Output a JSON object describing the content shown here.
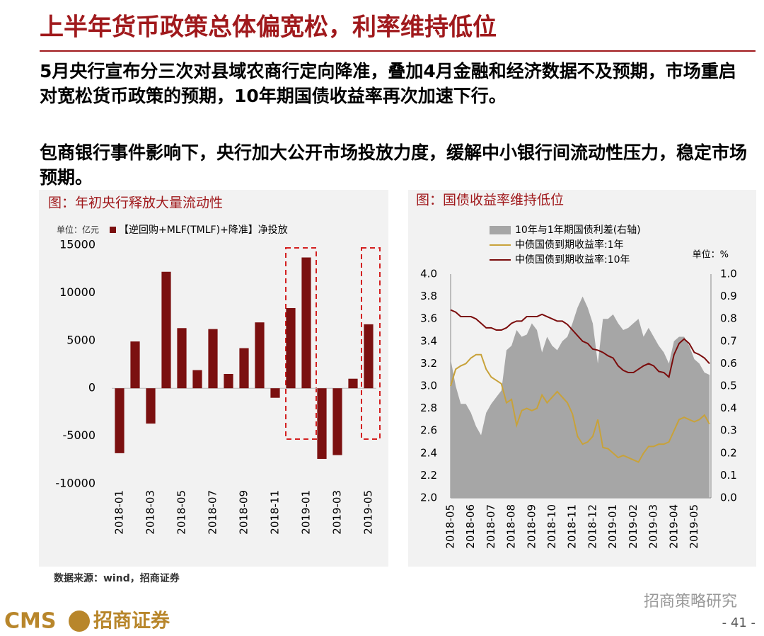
{
  "title": "上半年货币政策总体偏宽松，利率维持低位",
  "paragraphs": [
    "5月央行宣布分三次对县域农商行定向降准，叠加4月金融和经济数据不及预期，市场重启对宽松货币政策的预期，10年期国债收益率再次加速下行。",
    "包商银行事件影响下，央行加大公开市场投放力度，缓解中小银行间流动性压力，稳定市场预期。"
  ],
  "source": "数据来源：wind，招商证券",
  "footer": {
    "logo": "CMS",
    "company": "招商证券",
    "watermark": "招商策略研究",
    "page": "- 41 -"
  },
  "chart_data": [
    {
      "type": "bar",
      "title": "图：年初央行释放大量流动性",
      "unit": "单位：亿元",
      "categories": [
        "2018-01",
        null,
        "2018-03",
        null,
        "2018-05",
        null,
        "2018-07",
        null,
        "2018-09",
        null,
        "2018-11",
        null,
        "2019-01",
        null,
        "2019-03",
        null,
        "2019-05"
      ],
      "series": [
        {
          "name": "【逆回购+MLF(TMLF)+降准】净投放",
          "color": "#7b1010",
          "values": [
            -6800,
            4900,
            -3700,
            12200,
            6300,
            1900,
            6200,
            1500,
            4200,
            6900,
            -1000,
            8400,
            13700,
            -7400,
            -7000,
            1000,
            6700
          ]
        }
      ],
      "ylim": [
        -10000,
        15000
      ],
      "yticks": [
        -10000,
        -5000,
        0,
        5000,
        10000,
        15000
      ]
    },
    {
      "type": "line",
      "title": "图：国债收益率维持低位",
      "unit": "单位：%",
      "categories": [
        "2018-05",
        null,
        null,
        null,
        "2018-06",
        null,
        null,
        null,
        "2018-07",
        null,
        null,
        null,
        "2018-08",
        null,
        null,
        null,
        "2018-09",
        null,
        null,
        null,
        "2018-10",
        null,
        null,
        null,
        "2018-11",
        null,
        null,
        null,
        "2018-12",
        null,
        null,
        null,
        "2019-01",
        null,
        null,
        null,
        "2019-02",
        null,
        null,
        null,
        "2019-03",
        null,
        null,
        null,
        "2019-04",
        null,
        null,
        null,
        "2019-05",
        null,
        null,
        null
      ],
      "series": [
        {
          "name": "10年与1年期国债利差(右轴)",
          "type": "area",
          "axis": "y2",
          "color": "#a6a6a6",
          "values": [
            0.62,
            0.5,
            0.42,
            0.42,
            0.38,
            0.32,
            0.28,
            0.38,
            0.42,
            0.45,
            0.48,
            0.66,
            0.68,
            0.75,
            0.72,
            0.73,
            0.78,
            0.75,
            0.65,
            0.72,
            0.68,
            0.66,
            0.7,
            0.72,
            0.78,
            0.85,
            0.9,
            0.85,
            0.78,
            0.6,
            0.8,
            0.8,
            0.82,
            0.78,
            0.75,
            0.76,
            0.78,
            0.8,
            0.72,
            0.76,
            0.72,
            0.68,
            0.65,
            0.6,
            0.7,
            0.72,
            0.72,
            0.68,
            0.62,
            0.6,
            0.56,
            0.55
          ]
        },
        {
          "name": "中债国债到期收益率:1年",
          "color": "#c8a23a",
          "values": [
            3.0,
            3.15,
            3.18,
            3.2,
            3.25,
            3.28,
            3.28,
            3.15,
            3.08,
            3.05,
            3.02,
            2.85,
            2.88,
            2.65,
            2.78,
            2.8,
            2.78,
            2.8,
            2.92,
            2.85,
            2.9,
            2.95,
            2.9,
            2.85,
            2.75,
            2.55,
            2.48,
            2.5,
            2.55,
            2.7,
            2.45,
            2.44,
            2.4,
            2.36,
            2.38,
            2.36,
            2.34,
            2.32,
            2.4,
            2.46,
            2.46,
            2.48,
            2.48,
            2.5,
            2.6,
            2.7,
            2.72,
            2.7,
            2.68,
            2.7,
            2.74,
            2.66
          ]
        },
        {
          "name": "中债国债到期收益率:10年",
          "color": "#7b0c0c",
          "values": [
            3.68,
            3.66,
            3.62,
            3.62,
            3.62,
            3.6,
            3.56,
            3.52,
            3.52,
            3.5,
            3.5,
            3.52,
            3.56,
            3.58,
            3.58,
            3.62,
            3.62,
            3.62,
            3.64,
            3.62,
            3.6,
            3.58,
            3.58,
            3.55,
            3.5,
            3.45,
            3.4,
            3.38,
            3.33,
            3.32,
            3.3,
            3.27,
            3.25,
            3.18,
            3.14,
            3.12,
            3.12,
            3.15,
            3.18,
            3.2,
            3.18,
            3.13,
            3.12,
            3.08,
            3.28,
            3.38,
            3.42,
            3.38,
            3.3,
            3.28,
            3.25,
            3.2
          ]
        }
      ],
      "ylim": [
        2,
        4
      ],
      "yticks": [
        {
          "value": 2,
          "label": "2.0"
        },
        2.2,
        2.4,
        2.6,
        2.8,
        {
          "value": 3,
          "label": "3.0"
        },
        3.2,
        3.4,
        3.6,
        3.8,
        {
          "value": 4,
          "label": "4.0"
        }
      ],
      "y2lim": [
        0,
        1
      ],
      "y2ticks": [
        {
          "value": 0,
          "label": "0.0"
        },
        0.1,
        0.2,
        0.3,
        0.4,
        0.5,
        0.6,
        0.7,
        0.8,
        0.9,
        {
          "value": 1,
          "label": "1.0"
        }
      ]
    }
  ]
}
